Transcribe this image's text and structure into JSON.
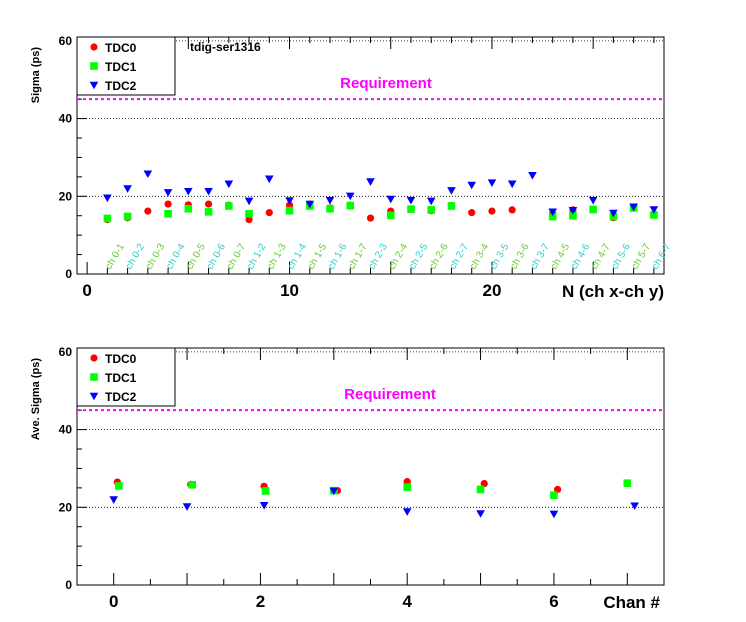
{
  "charts": {
    "top": {
      "type": "scatter",
      "ylabel": "Sigma (ps)",
      "xlabel": "N (ch x-ch y)",
      "annotation": "tdig-ser1316",
      "requirement_label": "Requirement",
      "requirement_value": 45,
      "xlim": [
        -0.5,
        28.5
      ],
      "ylim": [
        0,
        61
      ],
      "xticks": [
        "0",
        "10",
        "20"
      ],
      "yticks": [
        "0",
        "20",
        "40",
        "60"
      ],
      "legend": {
        "position": "top-left",
        "entries": [
          "TDC0",
          "TDC1",
          "TDC2"
        ]
      },
      "channel_labels": [
        "ch 0-1",
        "ch 0-2",
        "ch 0-3",
        "ch 0-4",
        "ch 0-5",
        "ch 0-6",
        "ch 0-7",
        "ch 1-2",
        "ch 1-3",
        "ch 1-4",
        "ch 1-5",
        "ch 1-6",
        "ch 1-7",
        "ch 2-3",
        "ch 2-4",
        "ch 2-5",
        "ch 2-6",
        "ch 2-7",
        "ch 3-4",
        "ch 3-5",
        "ch 3-6",
        "ch 3-7",
        "ch 4-5",
        "ch 4-6",
        "ch 4-7",
        "ch 5-6",
        "ch 5-7",
        "ch 6-7"
      ],
      "label_colors": [
        "#66cc33",
        "#33cccc",
        "#66cc33",
        "#33cccc",
        "#66cc33",
        "#33cccc",
        "#66cc33",
        "#33cccc",
        "#66cc33",
        "#33cccc",
        "#66cc33",
        "#33cccc",
        "#66cc33",
        "#33cccc",
        "#66cc33",
        "#33cccc",
        "#66cc33",
        "#33cccc",
        "#66cc33",
        "#33cccc",
        "#66cc33",
        "#33cccc",
        "#66cc33",
        "#33cccc",
        "#66cc33",
        "#33cccc",
        "#66cc33",
        "#33cccc"
      ],
      "series": [
        {
          "name": "TDC0",
          "color": "#ff0000",
          "marker": "circle",
          "points": [
            [
              1,
              14
            ],
            [
              2,
              14.5
            ],
            [
              3,
              16.2
            ],
            [
              4,
              18
            ],
            [
              5,
              17.8
            ],
            [
              6,
              18
            ],
            [
              7,
              17.7
            ],
            [
              8,
              14
            ],
            [
              9,
              15.8
            ],
            [
              10,
              17.7
            ],
            [
              11,
              18
            ],
            [
              12,
              17
            ],
            [
              13,
              17.7
            ],
            [
              14,
              14.4
            ],
            [
              15,
              16.2
            ],
            [
              17,
              16.3
            ],
            [
              18,
              17.6
            ],
            [
              19,
              15.8
            ],
            [
              20,
              16.2
            ],
            [
              21,
              16.5
            ],
            [
              23,
              15.6
            ],
            [
              24,
              16.5
            ],
            [
              26,
              14.5
            ]
          ]
        },
        {
          "name": "TDC1",
          "color": "#00ff00",
          "marker": "square",
          "points": [
            [
              1,
              14.3
            ],
            [
              2,
              14.8
            ],
            [
              4,
              15.5
            ],
            [
              5,
              16.8
            ],
            [
              6,
              16
            ],
            [
              7,
              17.5
            ],
            [
              8,
              15.5
            ],
            [
              10,
              16.3
            ],
            [
              11,
              17.5
            ],
            [
              12,
              16.8
            ],
            [
              13,
              17.6
            ],
            [
              15,
              15.1
            ],
            [
              16,
              16.7
            ],
            [
              17,
              16.5
            ],
            [
              18,
              17.5
            ],
            [
              23,
              14.8
            ],
            [
              24,
              15
            ],
            [
              25,
              16.6
            ],
            [
              26,
              14.8
            ],
            [
              27,
              17
            ],
            [
              28,
              15.2
            ]
          ]
        },
        {
          "name": "TDC2",
          "color": "#0000ff",
          "marker": "triangle-down",
          "points": [
            [
              1,
              19.6
            ],
            [
              2,
              22
            ],
            [
              3,
              25.8
            ],
            [
              4,
              21
            ],
            [
              5,
              21.3
            ],
            [
              6,
              21.3
            ],
            [
              7,
              23.2
            ],
            [
              8,
              18.8
            ],
            [
              9,
              24.5
            ],
            [
              10,
              18.9
            ],
            [
              11,
              18
            ],
            [
              12,
              19
            ],
            [
              13,
              20.1
            ],
            [
              14,
              23.8
            ],
            [
              15,
              19.3
            ],
            [
              16,
              19
            ],
            [
              17,
              18.8
            ],
            [
              18,
              21.5
            ],
            [
              19,
              22.9
            ],
            [
              20,
              23.5
            ],
            [
              21,
              23.2
            ],
            [
              22,
              25.4
            ],
            [
              23,
              16
            ],
            [
              24,
              16.4
            ],
            [
              25,
              19
            ],
            [
              26,
              15.7
            ],
            [
              27,
              17.3
            ],
            [
              28,
              16.6
            ]
          ]
        }
      ]
    },
    "bottom": {
      "type": "scatter",
      "ylabel": "Ave. Sigma (ps)",
      "xlabel": "Chan #",
      "requirement_label": "Requirement",
      "requirement_value": 45,
      "xlim": [
        -0.5,
        7.5
      ],
      "ylim": [
        0,
        61
      ],
      "xticks": [
        "0",
        "2",
        "4",
        "6"
      ],
      "yticks": [
        "0",
        "20",
        "40",
        "60"
      ],
      "legend": {
        "position": "top-left",
        "entries": [
          "TDC0",
          "TDC1",
          "TDC2"
        ]
      },
      "series": [
        {
          "name": "TDC0",
          "color": "#ff0000",
          "marker": "circle",
          "points": [
            [
              0.05,
              26.5
            ],
            [
              1.05,
              25.9
            ],
            [
              2.05,
              25.4
            ],
            [
              3.05,
              24.3
            ],
            [
              4.0,
              26.6
            ],
            [
              5.05,
              26.1
            ],
            [
              6.05,
              24.6
            ]
          ]
        },
        {
          "name": "TDC1",
          "color": "#00ff00",
          "marker": "square",
          "points": [
            [
              0.07,
              25.5
            ],
            [
              1.07,
              25.8
            ],
            [
              2.07,
              24.2
            ],
            [
              3.0,
              24.3
            ],
            [
              4.0,
              25.2
            ],
            [
              5.0,
              24.6
            ],
            [
              6.0,
              23.1
            ],
            [
              7.0,
              26.2
            ]
          ]
        },
        {
          "name": "TDC2",
          "color": "#0000ff",
          "marker": "triangle-down",
          "points": [
            [
              0,
              22
            ],
            [
              1,
              20.2
            ],
            [
              2.05,
              20.5
            ],
            [
              3.0,
              24.2
            ],
            [
              4.0,
              18.9
            ],
            [
              5.0,
              18.4
            ],
            [
              6.0,
              18.3
            ],
            [
              7.1,
              20.4
            ]
          ]
        }
      ]
    }
  },
  "colors": {
    "requirement": "#ff00ff",
    "axis": "#000000",
    "grid": "#000000"
  }
}
